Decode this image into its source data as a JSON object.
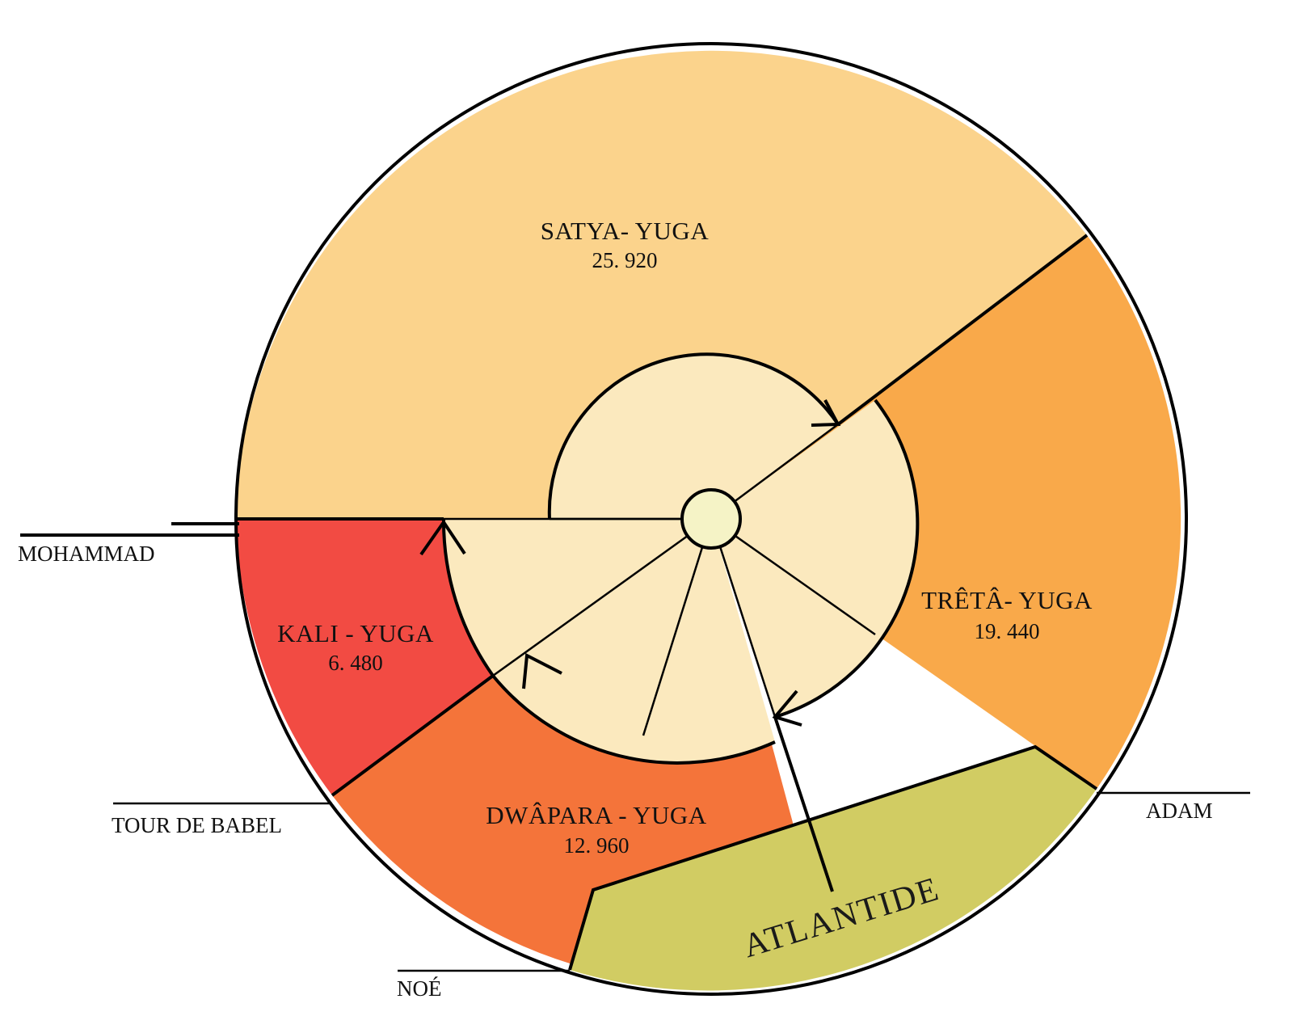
{
  "yugas": [
    {
      "id": "satya",
      "name": "SATYA- YUGA",
      "years": "25. 920",
      "color": "#FBD38C"
    },
    {
      "id": "treta",
      "name": "TRÊTÂ- YUGA",
      "years": "19. 440",
      "color": "#F9A94A"
    },
    {
      "id": "dwapara",
      "name": "DWÂPARA - YUGA",
      "years": "12. 960",
      "color": "#F4743A"
    },
    {
      "id": "kali",
      "name": "KALI - YUGA",
      "years": "6. 480",
      "color": "#F24B43"
    }
  ],
  "inner_disc_color": "#FBE9BE",
  "hub_color": "#F5F3C6",
  "atlantis": {
    "label": "ATLANTIDE",
    "color": "#D1CC63"
  },
  "events": {
    "mohammad": "MOHAMMAD",
    "babel": "TOUR DE BABEL",
    "noah": "NOÉ",
    "adam": "ADAM"
  }
}
